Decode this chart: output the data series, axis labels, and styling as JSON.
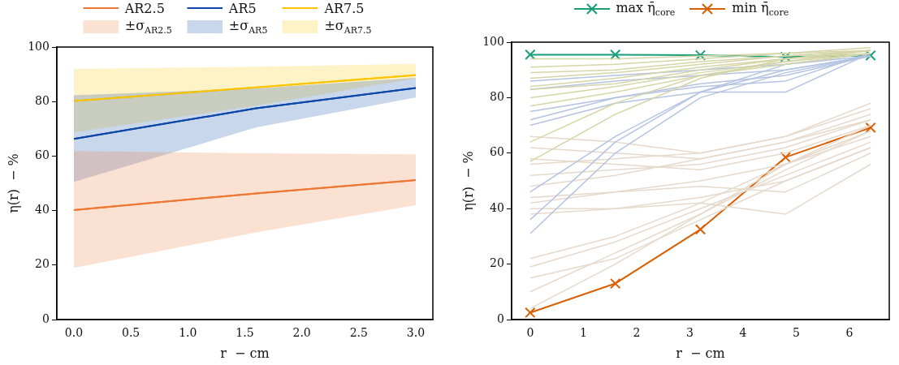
{
  "chart_data": [
    {
      "type": "line",
      "xlabel": "r  − cm",
      "ylabel": "η(r)  − %",
      "xlim": [
        -0.15,
        3.15
      ],
      "ylim": [
        0,
        100
      ],
      "xticks": [
        {
          "value": 0,
          "label": "0.0"
        },
        {
          "value": 0.5,
          "label": "0.5"
        },
        {
          "value": 1,
          "label": "1.0"
        },
        {
          "value": 1.5,
          "label": "1.5"
        },
        {
          "value": 2,
          "label": "2.0"
        },
        {
          "value": 2.5,
          "label": "2.5"
        },
        {
          "value": 3,
          "label": "3.0"
        }
      ],
      "yticks": [
        0,
        20,
        40,
        60,
        80,
        100
      ],
      "grid": false,
      "legend": "top",
      "marker": "none",
      "series": [
        {
          "type": "line",
          "name": "AR2.5",
          "color": "#ee7733",
          "x": [
            0,
            1.6,
            3.0
          ],
          "values": [
            40.2,
            46.3,
            51.2
          ]
        },
        {
          "type": "line",
          "name": "AR5",
          "color": "#0a47a9",
          "x": [
            0,
            1.6,
            3.0
          ],
          "values": [
            66.3,
            77.5,
            85.0
          ]
        },
        {
          "type": "line",
          "name": "AR7.5",
          "color": "#fcc500",
          "x": [
            0,
            1.6,
            3.0
          ],
          "values": [
            80.2,
            85.2,
            89.7
          ]
        },
        {
          "type": "line",
          "name": "±σ$_{AR2.5}$",
          "color": "#ee7733",
          "x": [
            0,
            1.6,
            3.0
          ],
          "values": [
            40.2,
            46.3,
            51.2
          ],
          "lower": [
            19,
            32,
            42
          ],
          "upper": [
            61.8,
            61,
            60.6
          ]
        },
        {
          "type": "line",
          "name": "±σ$_{AR5}$",
          "color": "#0a47a9",
          "x": [
            0,
            1.6,
            3.0
          ],
          "values": [
            66.3,
            77.5,
            85.0
          ],
          "lower": [
            50.5,
            70.5,
            81.5
          ],
          "upper": [
            82.3,
            84.8,
            88.7
          ]
        },
        {
          "type": "line",
          "name": "±σ$_{AR7.5}$",
          "color": "#fcc500",
          "x": [
            0,
            1.6,
            3.0
          ],
          "values": [
            80.2,
            85.2,
            89.7
          ],
          "lower": [
            68.7,
            78.5,
            88.5
          ],
          "upper": [
            92,
            92.8,
            93.8
          ]
        }
      ]
    },
    {
      "type": "line",
      "xlabel": "r  − cm",
      "ylabel": "η(r)  − %",
      "xlim": [
        -0.35,
        6.75
      ],
      "ylim": [
        0,
        100
      ],
      "xticks": [
        0,
        1,
        2,
        3,
        4,
        5,
        6
      ],
      "yticks": [
        0,
        20,
        40,
        60,
        80,
        100
      ],
      "grid": false,
      "legend": "top",
      "marker": "none",
      "x": [
        0,
        1.6,
        3.2,
        4.8,
        6.4
      ],
      "series": [
        {
          "color": "#d5d5a8",
          "values": [
            94,
            94,
            95,
            96,
            98
          ]
        },
        {
          "color": "#d5d5a8",
          "values": [
            91,
            92,
            94,
            96,
            97
          ]
        },
        {
          "color": "#d5d5a8",
          "values": [
            89,
            90,
            93,
            95,
            97
          ]
        },
        {
          "color": "#d5d5a8",
          "values": [
            87,
            89,
            92,
            95,
            97
          ]
        },
        {
          "color": "#d5d5a8",
          "values": [
            84,
            87,
            91,
            94,
            97
          ]
        },
        {
          "color": "#d5d5a8",
          "values": [
            83,
            85,
            90,
            94,
            96
          ]
        },
        {
          "color": "#d5d5a8",
          "values": [
            80,
            84,
            89,
            93,
            96
          ]
        },
        {
          "color": "#d5d5a8",
          "values": [
            77,
            82,
            88,
            92,
            96
          ]
        },
        {
          "color": "#d5d5a8",
          "values": [
            64,
            78,
            88,
            93,
            97
          ]
        },
        {
          "color": "#d5d5a8",
          "values": [
            57,
            74,
            87,
            94,
            97
          ]
        },
        {
          "color": "#b4c3e2",
          "values": [
            86,
            88,
            90,
            92,
            95
          ]
        },
        {
          "color": "#b4c3e2",
          "values": [
            83,
            86,
            88,
            90,
            95
          ]
        },
        {
          "color": "#b4c3e2",
          "values": [
            75,
            80,
            85,
            88,
            95
          ]
        },
        {
          "color": "#b4c3e2",
          "values": [
            72,
            80,
            84,
            86,
            96
          ]
        },
        {
          "color": "#b4c3e2",
          "values": [
            70,
            78,
            82,
            82,
            96
          ]
        },
        {
          "color": "#b4c3e2",
          "values": [
            46,
            66,
            82,
            92,
            96
          ]
        },
        {
          "color": "#b4c3e2",
          "values": [
            36,
            64,
            82,
            90,
            95
          ]
        },
        {
          "color": "#b4c3e2",
          "values": [
            31,
            60,
            80,
            89,
            95
          ]
        },
        {
          "color": "#e6d9cc",
          "values": [
            66,
            64,
            60,
            66,
            76
          ]
        },
        {
          "color": "#e6d9cc",
          "values": [
            62,
            60,
            58,
            64,
            74
          ]
        },
        {
          "color": "#e6d9cc",
          "values": [
            58,
            56,
            54,
            60,
            70
          ]
        },
        {
          "color": "#e6d9cc",
          "values": [
            56,
            58,
            60,
            66,
            78
          ]
        },
        {
          "color": "#e6d9cc",
          "values": [
            52,
            54,
            56,
            62,
            72
          ]
        },
        {
          "color": "#e6d9cc",
          "values": [
            48,
            52,
            58,
            64,
            72
          ]
        },
        {
          "color": "#e6d9cc",
          "values": [
            44,
            46,
            48,
            46,
            60
          ]
        },
        {
          "color": "#e6d9cc",
          "values": [
            40,
            40,
            44,
            50,
            62
          ]
        },
        {
          "color": "#e6d9cc",
          "values": [
            38,
            40,
            42,
            38,
            56
          ]
        },
        {
          "color": "#e6d9cc",
          "values": [
            42,
            46,
            50,
            56,
            66
          ]
        },
        {
          "color": "#e6d9cc",
          "values": [
            22,
            30,
            42,
            56,
            68
          ]
        },
        {
          "color": "#e6d9cc",
          "values": [
            19,
            28,
            40,
            52,
            64
          ]
        },
        {
          "color": "#e6d9cc",
          "values": [
            15,
            22,
            36,
            50,
            62
          ]
        },
        {
          "color": "#e6d9cc",
          "values": [
            10,
            24,
            38,
            54,
            68
          ]
        },
        {
          "color": "#e6d9cc",
          "values": [
            4,
            20,
            38,
            56,
            70
          ]
        },
        {
          "name": "max  η̄$_{core}$",
          "color": "#1a9e77",
          "marker": "cross",
          "values": [
            95.5,
            95.5,
            95.3,
            94.7,
            95.2
          ]
        },
        {
          "name": "min  η̄$_{core}$",
          "color": "#d95f02",
          "marker": "cross",
          "values": [
            2.5,
            13,
            32.5,
            58.5,
            69.2
          ]
        }
      ]
    }
  ]
}
